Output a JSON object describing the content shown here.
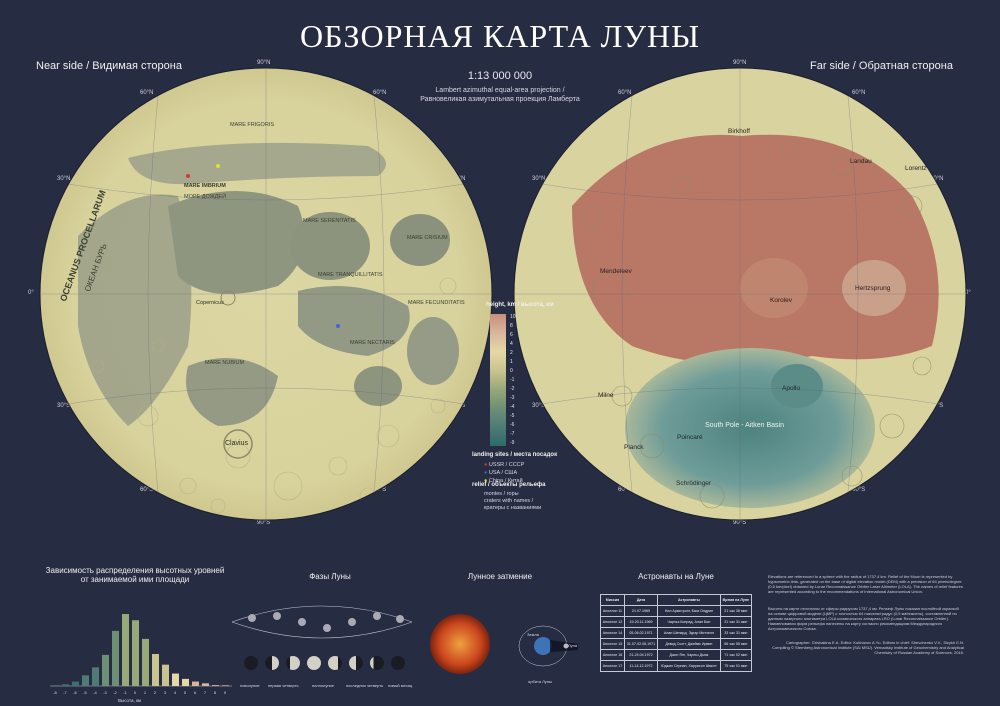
{
  "title": "ОБЗОРНАЯ КАРТА ЛУНЫ",
  "near_side_label": "Near side / Видимая сторона",
  "far_side_label": "Far side / Обратная сторона",
  "scale": "1:13 000 000",
  "projection": [
    "Lambert azimuthal equal-area projection /",
    "Равновеликая азимутальная проекция Ламберта"
  ],
  "grid": {
    "n90": "90°N",
    "n60": "60°N",
    "n30": "30°N",
    "eq": "0°",
    "s30": "30°S",
    "s60": "60°S",
    "s90": "90°S"
  },
  "near_features": {
    "imbrium": "MARE IMBRIUM",
    "imbrium_ru": "МОРЕ ДОЖДЕЙ",
    "procellarum": "OCEANUS PROCELLARUM",
    "procellarum_ru": "ОКЕАН БУРЬ",
    "serenitatis": "MARE SERENITATIS",
    "crisium": "MARE CRISIUM",
    "tranquillitatis": "MARE TRANQUILLITATIS",
    "fecunditatis": "MARE FECUNDITATIS",
    "nectaris": "MARE NECTARIS",
    "nubium": "MARE NUBIUM",
    "frigoris": "MARE FRIGORIS",
    "clavius": "Clavius",
    "copernicus": "Copernicus"
  },
  "far_features": {
    "korolev": "Korolev",
    "hertzsprung": "Hertzsprung",
    "apollo": "Apollo",
    "spa": "South Pole - Aitken Basin",
    "poincare": "Poincaré",
    "planck": "Planck",
    "schrodinger": "Schrödinger",
    "mendeleev": "Mendeleev",
    "milne": "Milne",
    "birkhoff": "Birkhoff",
    "landau": "Landau",
    "lorentz": "Lorentz"
  },
  "legend": {
    "height_title": "height, km / высота, км",
    "ticks": [
      "10",
      "8",
      "6",
      "4",
      "2",
      "1",
      "0",
      "-1",
      "-2",
      "-3",
      "-4",
      "-5",
      "-6",
      "-7",
      "-9"
    ],
    "landing_title": "landing sites / места посадок",
    "landing_items": [
      "USSR / СССР",
      "USA / США",
      "China / Китай"
    ],
    "relief_title": "relief / объекты рельефа",
    "relief_items": [
      "montes / горы",
      "craters with names /",
      "кратеры с названиями"
    ]
  },
  "sections": {
    "histogram_title": [
      "Зависимость распределения высотных уровней",
      "от занимаемой ими площади"
    ],
    "histogram_xlabel": "Высота, км",
    "phases_title": "Фазы Луны",
    "eclipse_title": "Лунное затмение",
    "astronauts_title": "Астронавты на Луне",
    "phase_labels": [
      "новолуние",
      "первая четверть",
      "полнолуние",
      "последняя четверть",
      "новый месяц"
    ],
    "eclipse_labels": [
      "Земля",
      "Луна",
      "орбита Луны"
    ]
  },
  "chart_data": {
    "type": "bar",
    "categories": [
      "-8",
      "-7",
      "-6",
      "-5",
      "-4",
      "-3",
      "-2",
      "-1",
      "0",
      "1",
      "2",
      "3",
      "4",
      "5",
      "6",
      "7",
      "8",
      "9"
    ],
    "values": [
      0.1,
      0.2,
      0.5,
      1.2,
      2.1,
      3.5,
      6.2,
      8.1,
      7.4,
      5.3,
      3.6,
      2.4,
      1.4,
      0.8,
      0.5,
      0.3,
      0.1,
      0.1
    ],
    "xlabel": "Высота, км"
  },
  "astronauts": {
    "headers": [
      "Миссия",
      "Дата",
      "Астронавты",
      "Время на Луне"
    ],
    "rows": [
      [
        "Аполлон 11",
        "21.07.1969",
        "Нил Армстронг, Базз Олдрин",
        "21 час 36 мин"
      ],
      [
        "Аполлон 12",
        "19-20.11.1969",
        "Чарльз Конрад, Алан Бин",
        "31 час 31 мин"
      ],
      [
        "Аполлон 14",
        "05-06.02.1971",
        "Алан Шепард, Эдгар Митчелл",
        "33 час 31 мин"
      ],
      [
        "Аполлон 15",
        "31.07-02.08.1971",
        "Дэвид Скотт, Джеймс Ирвин",
        "66 час 55 мин"
      ],
      [
        "Аполлон 16",
        "21-24.04.1972",
        "Джон Янг, Чарльз Дьюк",
        "71 час 02 мин"
      ],
      [
        "Аполлон 17",
        "11-14.12.1972",
        "Юджин Сернан, Харрисон Шмитт",
        "75 час 01 мин"
      ]
    ]
  },
  "notes": {
    "right_en": "Elevations are referenced to a sphere with the radius of 1737.4 km. Relief of the Moon is represented by hypsometric tints, generated on the base of digital elevation model (DEM) with a precision of 64 pixels/degree (0.5 km/pixel) obtained by Lunar Reconnaissance Orbiter Laser Altimeter (LOLA). The names of relief features are represented according to the recommendations of International Astronomical Union.",
    "right_ru": "Высоты на карте отсчитаны от сферы радиусом 1737,4 км. Рельеф Луны показан послойной окраской на основе цифровой модели (ЦМР) с точностью 64 пикселя/градус (0,5 км/пиксель), составленной по данным лазерного альтиметра LOLA космического аппарата LRO (Lunar Reconnaissance Orbiter). Наименования форм рельефа нанесены на карту согласно рекомендациям Международного Астрономического Союза.",
    "credits": "Cartographer: Grishakina E.A. Editor: Kokhanov A.Yu. Editors in chief: Shevchenko V.V., Sizykh E.N. Compiling © Sternberg Astronomical Institute (SAI MSU). Vernadsky Institute of Geochemistry and Analytical Chemistry of Russian Academy of Sciences, 2016."
  },
  "colors": {
    "background": "#262c42",
    "mare": "#8f9680",
    "highland": "#e3dcaa",
    "far_high": "#b3675a",
    "spa": "#6e9c99"
  }
}
